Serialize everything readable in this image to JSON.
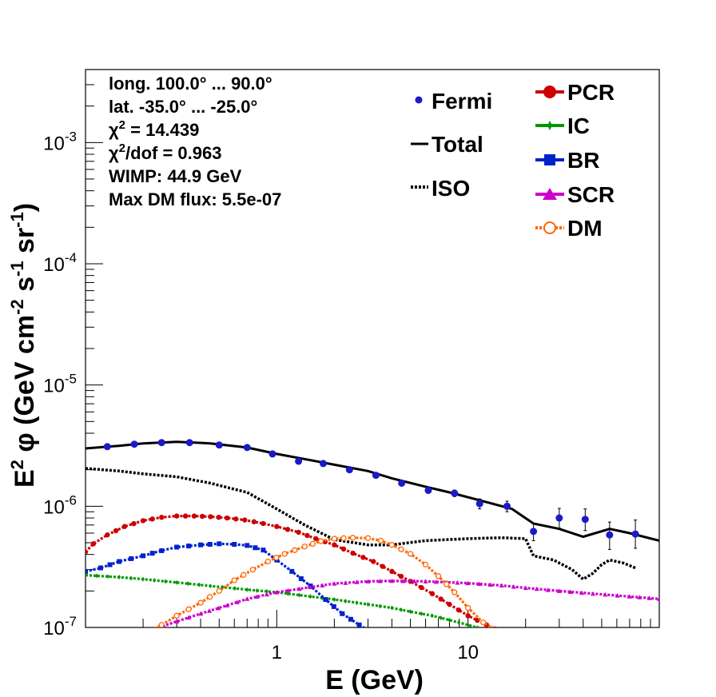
{
  "chart_data": {
    "type": "line",
    "x_scale": "log",
    "y_scale": "log",
    "xlim": [
      0.1,
      100
    ],
    "ylim": [
      1e-07,
      0.004
    ],
    "xlabel": "E (GeV)",
    "ylabel": {
      "main": "E",
      "sup1": "2",
      "phi": " φ (GeV cm",
      "sup2": "-2",
      "mid": " s",
      "sup3": "-1",
      "mid2": " sr",
      "sup4": "-1",
      "end": ")"
    },
    "y_ticks": [
      {
        "value": 1e-07,
        "base": "10",
        "exp": "-7"
      },
      {
        "value": 1e-06,
        "base": "10",
        "exp": "-6"
      },
      {
        "value": 1e-05,
        "base": "10",
        "exp": "-5"
      },
      {
        "value": 0.0001,
        "base": "10",
        "exp": "-4"
      },
      {
        "value": 0.001,
        "base": "10",
        "exp": "-3"
      }
    ],
    "x_ticks": [
      {
        "value": 1,
        "label": "1"
      },
      {
        "value": 10,
        "label": "10"
      }
    ],
    "info": {
      "longitude": "long. 100.0° ... 90.0°",
      "latitude": "lat. -35.0° ... -25.0°",
      "chi2_prefix": "χ",
      "chi2_sup": "2",
      "chi2_value": " = 14.439",
      "chi2dof_prefix": "χ",
      "chi2dof_sup": "2",
      "chi2dof_value": "/dof = 0.963",
      "wimp": "WIMP: 44.9 GeV",
      "max_dm": "Max DM flux: 5.5e-07"
    },
    "legend": {
      "left": [
        "Fermi",
        "Total",
        "ISO"
      ],
      "right": [
        "PCR",
        "IC",
        "BR",
        "SCR",
        "DM"
      ]
    },
    "colors": {
      "Fermi": "#1a1acc",
      "Total": "#000000",
      "ISO": "#000000",
      "PCR": "#cc0000",
      "IC": "#009900",
      "BR": "#0022cc",
      "SCR": "#cc00cc",
      "DM": "#ff6600"
    },
    "fermi": {
      "x": [
        0.13,
        0.18,
        0.25,
        0.35,
        0.5,
        0.7,
        0.95,
        1.3,
        1.75,
        2.4,
        3.3,
        4.5,
        6.2,
        8.5,
        11.5,
        16,
        22,
        30,
        41,
        55,
        75
      ],
      "y": [
        3.1e-06,
        3.25e-06,
        3.35e-06,
        3.35e-06,
        3.2e-06,
        3.05e-06,
        2.7e-06,
        2.35e-06,
        2.25e-06,
        2e-06,
        1.8e-06,
        1.55e-06,
        1.35e-06,
        1.28e-06,
        1.05e-06,
        1e-06,
        6.2e-07,
        8e-07,
        7.8e-07,
        5.8e-07,
        5.9e-07
      ],
      "err_lo": [
        5e-08,
        5e-08,
        5e-08,
        5e-08,
        5e-08,
        5e-08,
        5e-08,
        5e-08,
        5e-08,
        5e-08,
        5e-08,
        5e-08,
        5e-08,
        8e-08,
        1e-07,
        1e-07,
        1e-07,
        1.4e-07,
        1.5e-07,
        1.4e-07,
        1.4e-07
      ],
      "err_hi": [
        5e-08,
        5e-08,
        5e-08,
        5e-08,
        5e-08,
        5e-08,
        5e-08,
        5e-08,
        5e-08,
        5e-08,
        5e-08,
        5e-08,
        5e-08,
        8e-08,
        1e-07,
        1e-07,
        1e-07,
        1.6e-07,
        1.7e-07,
        1.6e-07,
        1.8e-07
      ]
    },
    "total": {
      "x": [
        0.1,
        0.15,
        0.2,
        0.3,
        0.45,
        0.7,
        1.0,
        1.5,
        2.0,
        3.0,
        4.0,
        6.0,
        8.0,
        12,
        17,
        22,
        30,
        40,
        55,
        70,
        100
      ],
      "y": [
        3e-06,
        3.15e-06,
        3.3e-06,
        3.4e-06,
        3.3e-06,
        3.05e-06,
        2.7e-06,
        2.4e-06,
        2.2e-06,
        1.95e-06,
        1.7e-06,
        1.45e-06,
        1.3e-06,
        1.1e-06,
        9.5e-07,
        7.2e-07,
        6.5e-07,
        5.6e-07,
        6.5e-07,
        6e-07,
        5.2e-07
      ]
    },
    "iso": {
      "x": [
        0.1,
        0.15,
        0.2,
        0.3,
        0.45,
        0.7,
        1.0,
        1.4,
        2.0,
        3.0,
        4.0,
        6.0,
        10,
        15,
        20,
        22,
        28,
        35,
        40,
        45,
        50,
        55,
        65,
        75
      ],
      "y": [
        2.05e-06,
        1.95e-06,
        1.85e-06,
        1.75e-06,
        1.55e-06,
        1.3e-06,
        9.5e-07,
        7e-07,
        5.3e-07,
        4.8e-07,
        4.8e-07,
        5.2e-07,
        5.4e-07,
        5.5e-07,
        5.4e-07,
        3.9e-07,
        3.6e-07,
        3e-07,
        2.5e-07,
        2.8e-07,
        3.3e-07,
        3.6e-07,
        3.4e-07,
        3.1e-07
      ]
    },
    "series": [
      {
        "name": "PCR",
        "x": [
          0.1,
          0.11,
          0.13,
          0.16,
          0.2,
          0.25,
          0.3,
          0.37,
          0.45,
          0.55,
          0.68,
          0.85,
          1.0,
          1.3,
          1.6,
          2.0,
          2.5,
          3.2,
          4.0,
          5.0,
          6.5,
          8.0,
          10,
          12.5,
          15.5
        ],
        "y": [
          4.2e-07,
          4.9e-07,
          5.8e-07,
          6.8e-07,
          7.6e-07,
          8.1e-07,
          8.3e-07,
          8.3e-07,
          8.2e-07,
          8e-07,
          7.7e-07,
          7.2e-07,
          6.8e-07,
          6.1e-07,
          5.4e-07,
          4.8e-07,
          4.1e-07,
          3.5e-07,
          2.9e-07,
          2.4e-07,
          1.9e-07,
          1.55e-07,
          1.25e-07,
          1.05e-07,
          9e-08
        ]
      },
      {
        "name": "IC",
        "x": [
          0.1,
          0.15,
          0.2,
          0.3,
          0.45,
          0.7,
          1.0,
          1.5,
          2.0,
          3.0,
          4.0,
          5.0,
          6.5,
          8.0,
          10,
          12.5,
          15
        ],
        "y": [
          2.7e-07,
          2.6e-07,
          2.5e-07,
          2.35e-07,
          2.2e-07,
          2.05e-07,
          1.95e-07,
          1.8e-07,
          1.7e-07,
          1.55e-07,
          1.45e-07,
          1.35e-07,
          1.25e-07,
          1.15e-07,
          1.05e-07,
          9.5e-08,
          9e-08
        ]
      },
      {
        "name": "BR",
        "x": [
          0.1,
          0.12,
          0.15,
          0.2,
          0.25,
          0.3,
          0.4,
          0.5,
          0.6,
          0.7,
          0.85,
          1.0,
          1.2,
          1.5,
          1.8,
          2.2,
          2.7,
          3.0
        ],
        "y": [
          2.9e-07,
          3.1e-07,
          3.5e-07,
          3.9e-07,
          4.3e-07,
          4.6e-07,
          4.8e-07,
          4.9e-07,
          4.85e-07,
          4.75e-07,
          4.35e-07,
          3.6e-07,
          2.9e-07,
          2.2e-07,
          1.7e-07,
          1.3e-07,
          1.05e-07,
          9.5e-08
        ]
      },
      {
        "name": "SCR",
        "x": [
          0.22,
          0.3,
          0.4,
          0.55,
          0.7,
          1.0,
          1.5,
          2.0,
          3.0,
          4.0,
          6.0,
          10,
          15,
          20,
          30,
          45,
          70,
          100
        ],
        "y": [
          9.5e-08,
          1.12e-07,
          1.3e-07,
          1.52e-07,
          1.72e-07,
          1.95e-07,
          2.15e-07,
          2.3e-07,
          2.4e-07,
          2.42e-07,
          2.4e-07,
          2.32e-07,
          2.22e-07,
          2.12e-07,
          2e-07,
          1.9e-07,
          1.8e-07,
          1.72e-07
        ]
      },
      {
        "name": "DM",
        "x": [
          0.22,
          0.25,
          0.3,
          0.4,
          0.5,
          0.6,
          0.75,
          0.9,
          1.1,
          1.4,
          1.7,
          2.0,
          2.5,
          3.0,
          3.5,
          4.0,
          5.0,
          6.0,
          7.0,
          8.5,
          10,
          12,
          14
        ],
        "y": [
          9.5e-08,
          1.05e-07,
          1.25e-07,
          1.6e-07,
          2e-07,
          2.45e-07,
          3e-07,
          3.5e-07,
          4.05e-07,
          4.65e-07,
          5.15e-07,
          5.4e-07,
          5.5e-07,
          5.45e-07,
          5.2e-07,
          4.8e-07,
          4.05e-07,
          3.3e-07,
          2.65e-07,
          1.95e-07,
          1.45e-07,
          1.1e-07,
          9.5e-08
        ]
      }
    ]
  }
}
